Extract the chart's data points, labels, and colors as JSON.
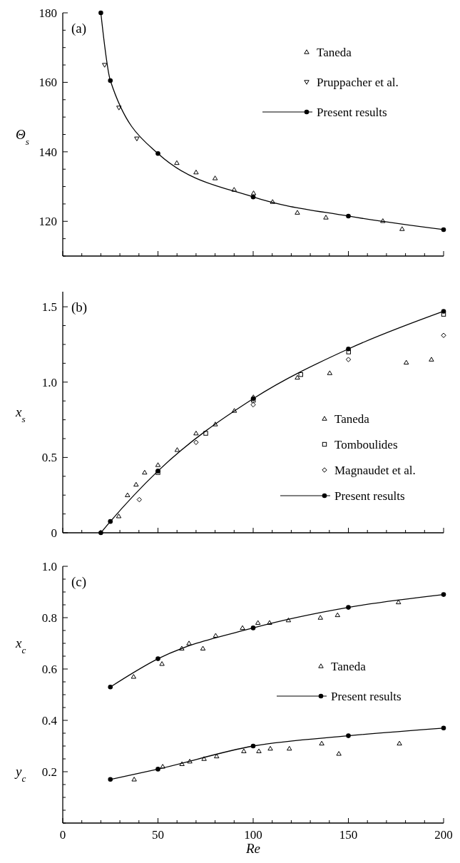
{
  "chart_data": [
    {
      "type": "scatter",
      "title": "(a)",
      "ylabel": "Θ$_{s}$",
      "xlim": [
        0,
        200
      ],
      "xticks": [
        0,
        50,
        100,
        150,
        200
      ],
      "ylim": [
        110,
        180
      ],
      "yticks": [
        120,
        140,
        160,
        180
      ],
      "tick_labels": "y",
      "legend": "top right",
      "series": [
        {
          "name": "Taneda",
          "marker": "triangle",
          "color": "#000000",
          "x": [
            59.9,
            70,
            80,
            90,
            100.2,
            110.2,
            123.2,
            138.2,
            168.1,
            178.2
          ],
          "values": [
            136.8,
            134.1,
            132.4,
            129.1,
            128.1,
            125.6,
            122.5,
            121.1,
            120.1,
            117.8
          ]
        },
        {
          "name": "Pruppacher et al.",
          "marker": "triangle-down",
          "color": "#000000",
          "x": [
            22,
            29.5,
            38.9
          ],
          "values": [
            165,
            152.7,
            143.8
          ]
        },
        {
          "name": "Present results",
          "type": "line",
          "marker": "circle",
          "color": "#000000",
          "x": [
            20,
            25,
            50,
            100,
            150,
            200
          ],
          "values": [
            180,
            160.5,
            139.5,
            127,
            121.5,
            117.6
          ]
        }
      ]
    },
    {
      "type": "scatter",
      "title": "(b)",
      "ylabel": "x$_{s}$",
      "xlim": [
        0,
        200
      ],
      "xticks": [
        0,
        50,
        100,
        150,
        200
      ],
      "ylim": [
        0,
        1.6
      ],
      "yticks": [
        0,
        0.5,
        {
          "value": 1,
          "label": "1.0"
        },
        1.5
      ],
      "tick_labels": "y",
      "legend": "bottom right",
      "series": [
        {
          "name": "Taneda",
          "marker": "triangle",
          "color": "#000000",
          "x": [
            29.4,
            34,
            38.5,
            43,
            50,
            60.1,
            70,
            80.1,
            90.1,
            100.1,
            123.2,
            140.2,
            180.4,
            193.6
          ],
          "values": [
            0.11,
            0.25,
            0.32,
            0.4,
            0.45,
            0.55,
            0.66,
            0.72,
            0.81,
            0.9,
            1.03,
            1.06,
            1.13,
            1.15
          ]
        },
        {
          "name": "Tomboulides",
          "marker": "square",
          "color": "#000000",
          "x": [
            50,
            75.1,
            100.1,
            125,
            150.1,
            200
          ],
          "values": [
            0.4,
            0.66,
            0.88,
            1.05,
            1.2,
            1.45
          ]
        },
        {
          "name": "Magnaudet et al.",
          "marker": "diamond",
          "color": "#000000",
          "x": [
            40.2,
            70,
            100,
            150,
            200
          ],
          "values": [
            0.22,
            0.6,
            0.85,
            1.15,
            1.31
          ]
        },
        {
          "name": "Present results",
          "type": "line",
          "marker": "circle",
          "color": "#000000",
          "x": [
            20,
            25,
            50,
            100,
            150,
            200
          ],
          "values": [
            0,
            0.075,
            0.41,
            0.89,
            1.22,
            1.47
          ]
        }
      ]
    },
    {
      "type": "scatter",
      "title": "(c)",
      "xlabel": "Re",
      "xlim": [
        0,
        200
      ],
      "xticks": [
        0,
        50,
        100,
        150,
        200
      ],
      "ylim": [
        0,
        1.0
      ],
      "yticks": [
        0.2,
        0.4,
        0.6,
        0.8,
        {
          "value": 1,
          "label": "1.0"
        }
      ],
      "legend": "right",
      "annotations": [
        "x$_{c}$",
        "y$_{c}$"
      ],
      "series": [
        {
          "name": "Taneda",
          "marker": "triangle",
          "color": "#000000",
          "x": [
            37.2,
            52.1,
            62.5,
            66.3,
            73.6,
            80.3,
            94.4,
            102.5,
            108.6,
            118.5,
            135.3,
            144.3,
            176.3
          ],
          "values": [
            0.57,
            0.62,
            0.68,
            0.7,
            0.68,
            0.73,
            0.76,
            0.78,
            0.78,
            0.79,
            0.8,
            0.81,
            0.86
          ]
        },
        {
          "name": "Present results",
          "type": "line",
          "marker": "circle",
          "color": "#000000",
          "x": [
            25,
            50,
            100,
            150,
            200
          ],
          "values": [
            0.53,
            0.64,
            0.76,
            0.84,
            0.89
          ]
        },
        {
          "marker": "triangle",
          "color": "#000000",
          "x": [
            37.5,
            52.5,
            62.6,
            66.7,
            74.2,
            80.8,
            95.1,
            103,
            109,
            119,
            136,
            145,
            176.8
          ],
          "values": [
            0.17,
            0.22,
            0.23,
            0.24,
            0.25,
            0.26,
            0.28,
            0.28,
            0.29,
            0.29,
            0.31,
            0.27,
            0.31
          ]
        },
        {
          "type": "line",
          "marker": "circle",
          "color": "#000000",
          "x": [
            25,
            50,
            100,
            150,
            200
          ],
          "values": [
            0.17,
            0.21,
            0.3,
            0.34,
            0.37
          ]
        }
      ]
    }
  ]
}
